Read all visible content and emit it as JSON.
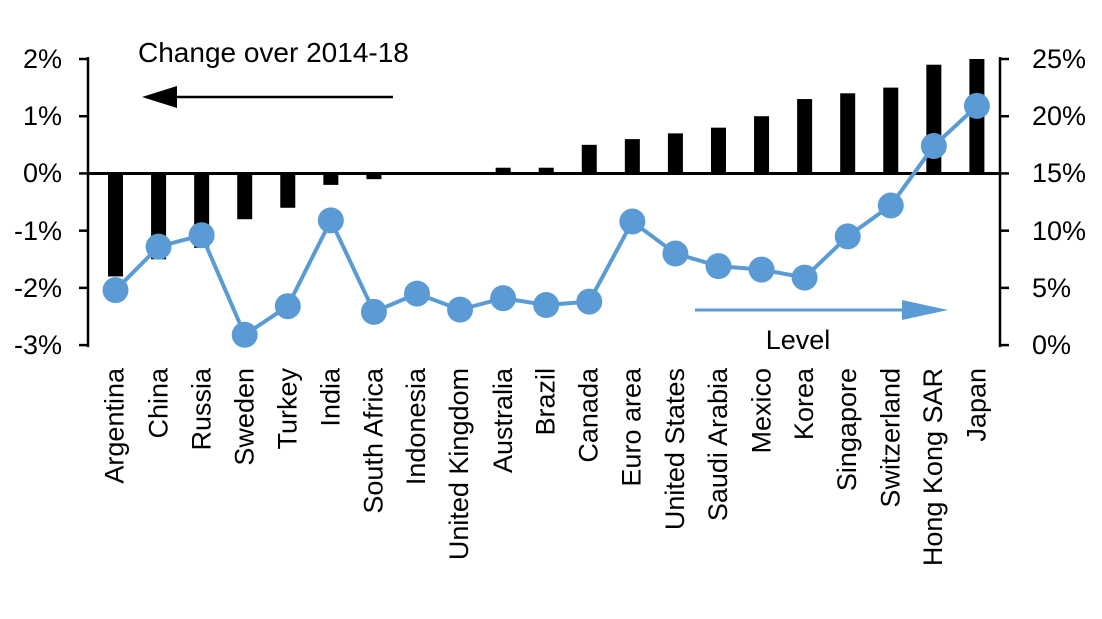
{
  "chart_data": {
    "type": "combo",
    "title": "",
    "categories": [
      "Argentina",
      "China",
      "Russia",
      "Sweden",
      "Turkey",
      "India",
      "South Africa",
      "Indonesia",
      "United Kingdom",
      "Australia",
      "Brazil",
      "Canada",
      "Euro area",
      "United States",
      "Saudi Arabia",
      "Mexico",
      "Korea",
      "Singapore",
      "Switzerland",
      "Hong Kong SAR",
      "Japan"
    ],
    "series": [
      {
        "name": "Change over 2014-18",
        "type": "bar",
        "axis": "left",
        "color": "#000000",
        "values": [
          -1.8,
          -1.5,
          -1.3,
          -0.8,
          -0.6,
          -0.2,
          -0.1,
          0.0,
          0.0,
          0.1,
          0.1,
          0.5,
          0.6,
          0.7,
          0.8,
          1.0,
          1.3,
          1.4,
          1.5,
          1.9,
          2.0
        ]
      },
      {
        "name": "Level",
        "type": "line",
        "axis": "right",
        "color": "#5B9BD5",
        "values": [
          4.8,
          8.6,
          9.6,
          0.9,
          3.4,
          10.9,
          2.9,
          4.5,
          3.1,
          4.1,
          3.5,
          3.8,
          10.8,
          8.0,
          6.9,
          6.6,
          5.9,
          9.5,
          12.2,
          17.4,
          20.9
        ]
      }
    ],
    "left_axis": {
      "min": -3,
      "max": 2,
      "tick_values": [
        2,
        1,
        0,
        -1,
        -2,
        -3
      ],
      "tick_labels": [
        "2%",
        "1%",
        "0%",
        "-1%",
        "-2%",
        "-3%"
      ]
    },
    "right_axis": {
      "min": 0,
      "max": 25,
      "tick_values": [
        25,
        20,
        15,
        10,
        5,
        0
      ],
      "tick_labels": [
        "25%",
        "20%",
        "15%",
        "10%",
        "5%",
        "0%"
      ]
    },
    "annotations": {
      "change_label": "Change over 2014-18",
      "level_label": "Level",
      "change_arrow_direction": "left",
      "level_arrow_direction": "right",
      "change_arrow_color": "#000000",
      "level_arrow_color": "#5B9BD5"
    },
    "layout_hints": {
      "grid": "off",
      "zero_line": true,
      "legend": "none"
    }
  }
}
